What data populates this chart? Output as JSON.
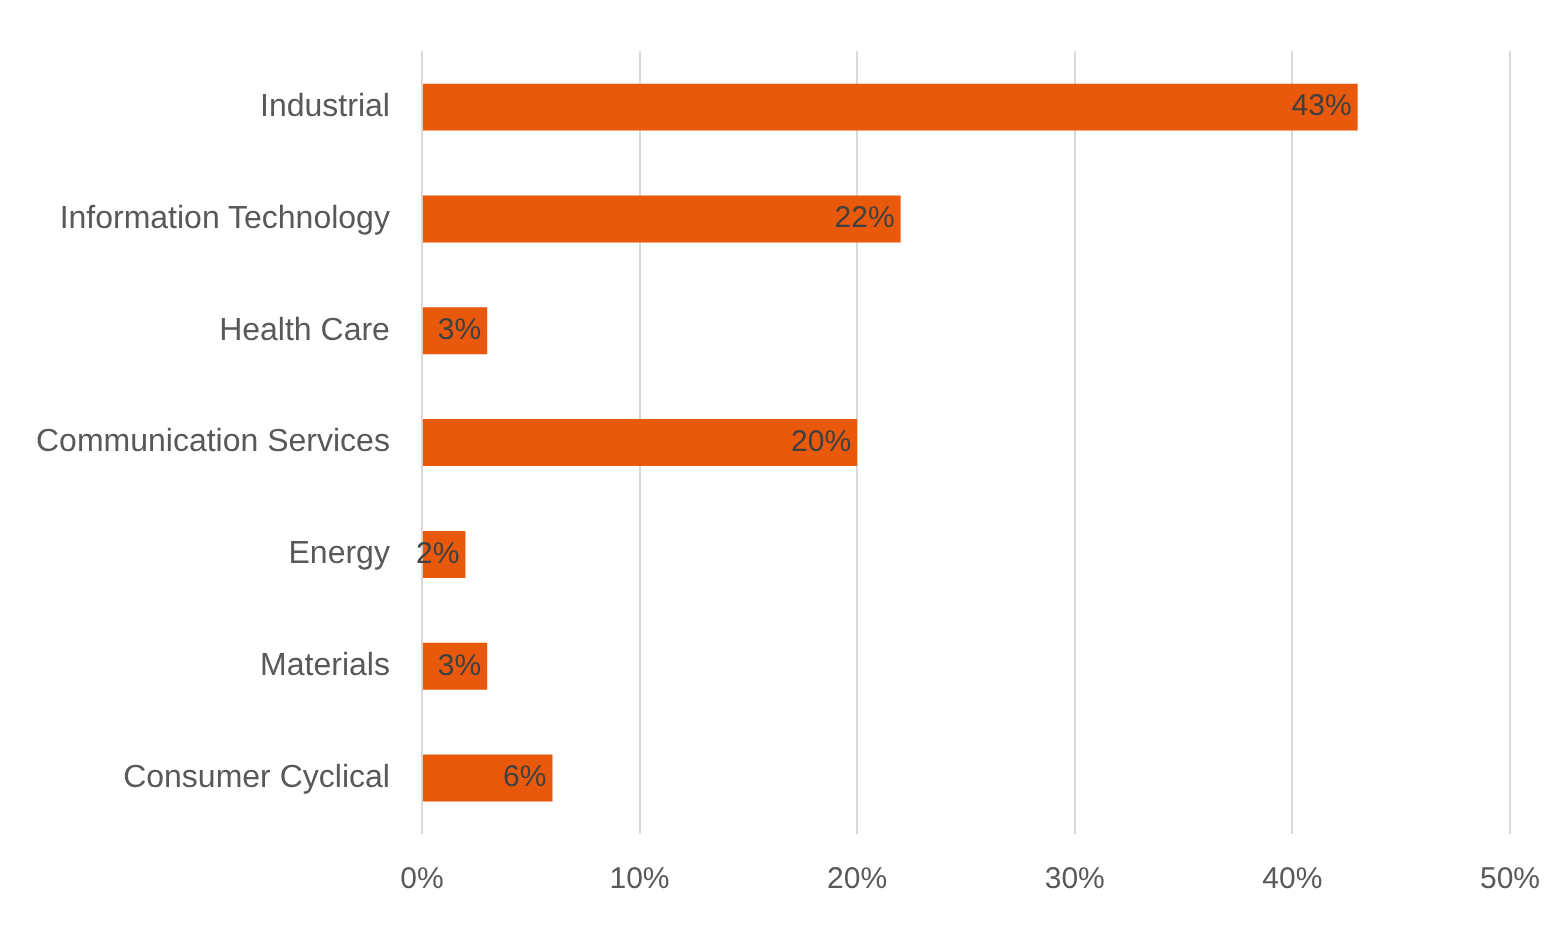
{
  "chart_data": {
    "type": "bar",
    "orientation": "horizontal",
    "categories": [
      "Industrial",
      "Information Technology",
      "Health Care",
      "Communication Services",
      "Energy",
      "Materials",
      "Consumer Cyclical"
    ],
    "values": [
      43,
      22,
      3,
      20,
      2,
      3,
      6
    ],
    "color": "#e8590c",
    "xlim": [
      0,
      50
    ],
    "xticks": [
      {
        "value": 0,
        "label": "0%"
      },
      {
        "value": 10,
        "label": "10%"
      },
      {
        "value": 20,
        "label": "20%"
      },
      {
        "value": 30,
        "label": "30%"
      },
      {
        "value": 40,
        "label": "40%"
      },
      {
        "value": 50,
        "label": "50%"
      }
    ],
    "grid": "x",
    "legend": false,
    "data_labels": true,
    "value_labels": [
      "43%",
      "22%",
      "3%",
      "20%",
      "2%",
      "3%",
      "6%"
    ]
  }
}
